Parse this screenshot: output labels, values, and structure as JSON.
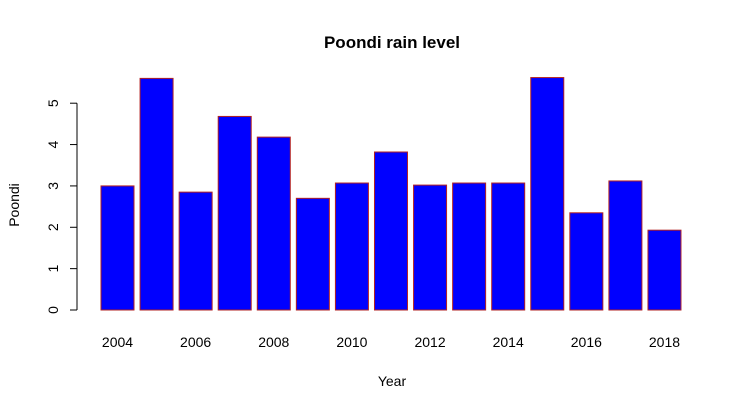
{
  "chart_data": {
    "type": "bar",
    "title": "Poondi rain level",
    "xlabel": "Year",
    "ylabel": "Poondi",
    "categories": [
      "2004",
      "2005",
      "2006",
      "2007",
      "2008",
      "2009",
      "2010",
      "2011",
      "2012",
      "2013",
      "2014",
      "2015",
      "2016",
      "2017",
      "2018"
    ],
    "values": [
      3.0,
      5.6,
      2.85,
      4.68,
      4.18,
      2.7,
      3.07,
      3.82,
      3.02,
      3.07,
      3.07,
      5.62,
      2.35,
      3.12,
      1.93
    ],
    "x_tick_labels": [
      "2004",
      "2006",
      "2008",
      "2010",
      "2012",
      "2014",
      "2016",
      "2018"
    ],
    "y_ticks": [
      0,
      1,
      2,
      3,
      4,
      5
    ],
    "ylim": [
      0,
      5.62
    ],
    "bar_fill": "#0000ff",
    "bar_border": "#b22222",
    "grid": false,
    "legend": "none"
  }
}
